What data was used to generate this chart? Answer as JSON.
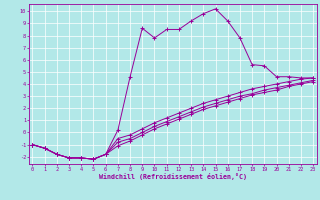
{
  "xlabel": "Windchill (Refroidissement éolien,°C)",
  "background_color": "#b2e8e8",
  "line_color": "#990099",
  "grid_color": "#ffffff",
  "x_ticks": [
    0,
    1,
    2,
    3,
    4,
    5,
    6,
    7,
    8,
    9,
    10,
    11,
    12,
    13,
    14,
    15,
    16,
    17,
    18,
    19,
    20,
    21,
    22,
    23
  ],
  "y_ticks": [
    -2,
    -1,
    0,
    1,
    2,
    3,
    4,
    5,
    6,
    7,
    8,
    9,
    10
  ],
  "ylim": [
    -2.6,
    10.6
  ],
  "xlim": [
    -0.3,
    23.3
  ],
  "series1": {
    "x": [
      0,
      1,
      2,
      3,
      4,
      5,
      6,
      7,
      8,
      9,
      10,
      11,
      12,
      13,
      14,
      15,
      16,
      17,
      18,
      19,
      20,
      21,
      22,
      23
    ],
    "y": [
      -1.0,
      -1.3,
      -1.8,
      -2.1,
      -2.1,
      -2.2,
      -1.8,
      0.2,
      4.6,
      8.6,
      7.8,
      8.5,
      8.5,
      9.2,
      9.8,
      10.2,
      9.2,
      7.8,
      5.6,
      5.5,
      4.6,
      4.6,
      4.5,
      4.5
    ]
  },
  "series2": {
    "x": [
      0,
      1,
      2,
      3,
      4,
      5,
      6,
      7,
      8,
      9,
      10,
      11,
      12,
      13,
      14,
      15,
      16,
      17,
      18,
      19,
      20,
      21,
      22,
      23
    ],
    "y": [
      -1.0,
      -1.3,
      -1.8,
      -2.1,
      -2.1,
      -2.2,
      -1.8,
      -0.5,
      -0.2,
      0.3,
      0.8,
      1.2,
      1.6,
      2.0,
      2.4,
      2.7,
      3.0,
      3.3,
      3.6,
      3.8,
      4.0,
      4.2,
      4.4,
      4.5
    ]
  },
  "series3": {
    "x": [
      0,
      1,
      2,
      3,
      4,
      5,
      6,
      7,
      8,
      9,
      10,
      11,
      12,
      13,
      14,
      15,
      16,
      17,
      18,
      19,
      20,
      21,
      22,
      23
    ],
    "y": [
      -1.0,
      -1.3,
      -1.8,
      -2.1,
      -2.1,
      -2.2,
      -1.8,
      -0.8,
      -0.5,
      0.0,
      0.5,
      0.9,
      1.3,
      1.7,
      2.1,
      2.4,
      2.7,
      3.0,
      3.2,
      3.5,
      3.7,
      3.9,
      4.1,
      4.3
    ]
  },
  "series4": {
    "x": [
      0,
      1,
      2,
      3,
      4,
      5,
      6,
      7,
      8,
      9,
      10,
      11,
      12,
      13,
      14,
      15,
      16,
      17,
      18,
      19,
      20,
      21,
      22,
      23
    ],
    "y": [
      -1.0,
      -1.3,
      -1.8,
      -2.1,
      -2.1,
      -2.2,
      -1.8,
      -1.1,
      -0.7,
      -0.2,
      0.3,
      0.7,
      1.1,
      1.5,
      1.9,
      2.2,
      2.5,
      2.8,
      3.1,
      3.3,
      3.5,
      3.8,
      4.0,
      4.2
    ]
  },
  "figsize": [
    3.2,
    2.0
  ],
  "dpi": 100
}
